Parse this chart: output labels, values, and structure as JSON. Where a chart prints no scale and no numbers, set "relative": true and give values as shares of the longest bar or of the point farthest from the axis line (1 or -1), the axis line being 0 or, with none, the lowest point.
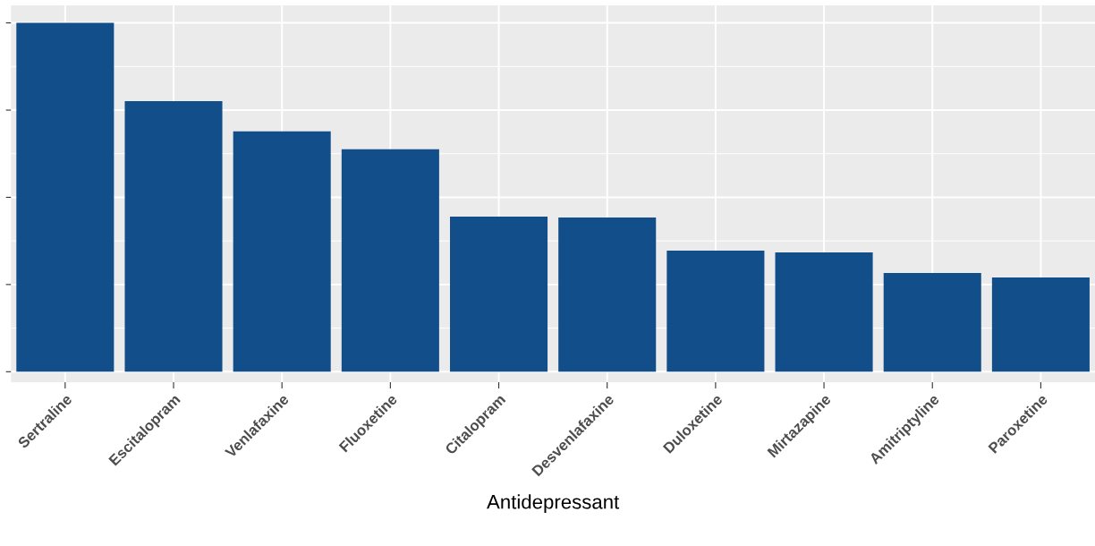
{
  "chart_data": {
    "type": "bar",
    "xlabel": "Antidepressant",
    "relative": true,
    "grid": true,
    "categories": [
      "Sertraline",
      "Escitalopram",
      "Venlafaxine",
      "Fluoxetine",
      "Citalopram",
      "Desvenlafaxine",
      "Duloxetine",
      "Mirtazapine",
      "Amitriptyline",
      "Paroxetine"
    ],
    "values": [
      1,
      0.776,
      0.689,
      0.638,
      0.445,
      0.442,
      0.347,
      0.342,
      0.283,
      0.27
    ],
    "color": "#114e8a"
  }
}
